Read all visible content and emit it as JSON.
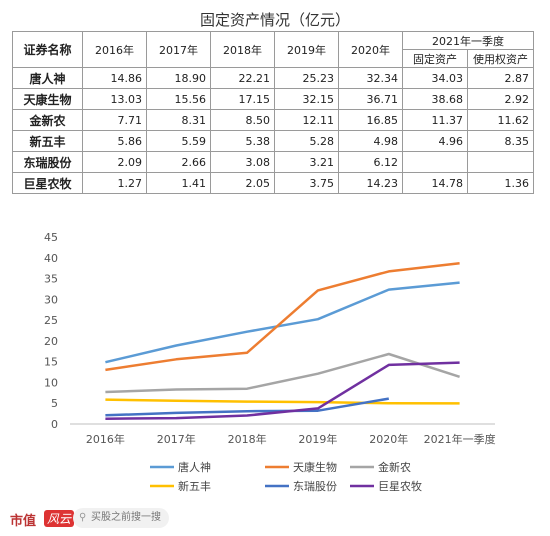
{
  "title": "固定资产情况（亿元）",
  "table": {
    "header_name": "证券名称",
    "years": [
      "2016年",
      "2017年",
      "2018年",
      "2019年",
      "2020年"
    ],
    "q1_group": "2021年一季度",
    "q1_sub": [
      "固定资产",
      "使用权资产"
    ],
    "rows": [
      {
        "name": "唐人神",
        "cells": [
          "14.86",
          "18.90",
          "22.21",
          "25.23",
          "32.34",
          "34.03",
          "2.87"
        ]
      },
      {
        "name": "天康生物",
        "cells": [
          "13.03",
          "15.56",
          "17.15",
          "32.15",
          "36.71",
          "38.68",
          "2.92"
        ]
      },
      {
        "name": "金新农",
        "cells": [
          "7.71",
          "8.31",
          "8.50",
          "12.11",
          "16.85",
          "11.37",
          "11.62"
        ]
      },
      {
        "name": "新五丰",
        "cells": [
          "5.86",
          "5.59",
          "5.38",
          "5.28",
          "4.98",
          "4.96",
          "8.35"
        ]
      },
      {
        "name": "东瑞股份",
        "cells": [
          "2.09",
          "2.66",
          "3.08",
          "3.21",
          "6.12",
          "",
          ""
        ]
      },
      {
        "name": "巨星农牧",
        "cells": [
          "1.27",
          "1.41",
          "2.05",
          "3.75",
          "14.23",
          "14.78",
          "1.36"
        ]
      }
    ]
  },
  "chart_data": {
    "type": "line",
    "x": [
      "2016年",
      "2017年",
      "2018年",
      "2019年",
      "2020年",
      "2021年一季度"
    ],
    "ylim": [
      0,
      45
    ],
    "yticks": [
      0,
      5,
      10,
      15,
      20,
      25,
      30,
      35,
      40,
      45
    ],
    "grid": false,
    "legend_position": "bottom",
    "series": [
      {
        "name": "唐人神",
        "color": "#5b9bd5",
        "values": [
          14.86,
          18.9,
          22.21,
          25.23,
          32.34,
          34.03
        ]
      },
      {
        "name": "天康生物",
        "color": "#ed7d31",
        "values": [
          13.03,
          15.56,
          17.15,
          32.15,
          36.71,
          38.68
        ]
      },
      {
        "name": "金新农",
        "color": "#a5a5a5",
        "values": [
          7.71,
          8.31,
          8.5,
          12.11,
          16.85,
          11.37
        ]
      },
      {
        "name": "新五丰",
        "color": "#ffc000",
        "values": [
          5.86,
          5.59,
          5.38,
          5.28,
          4.98,
          4.96
        ]
      },
      {
        "name": "东瑞股份",
        "color": "#4472c4",
        "values": [
          2.09,
          2.66,
          3.08,
          3.21,
          6.12,
          null
        ]
      },
      {
        "name": "巨星农牧",
        "color": "#7030a0",
        "values": [
          1.27,
          1.41,
          2.05,
          3.75,
          14.23,
          14.78
        ]
      }
    ]
  },
  "footer": {
    "brand": "市值",
    "brand_accent": "风云",
    "search_text": "买股之前搜一搜"
  }
}
